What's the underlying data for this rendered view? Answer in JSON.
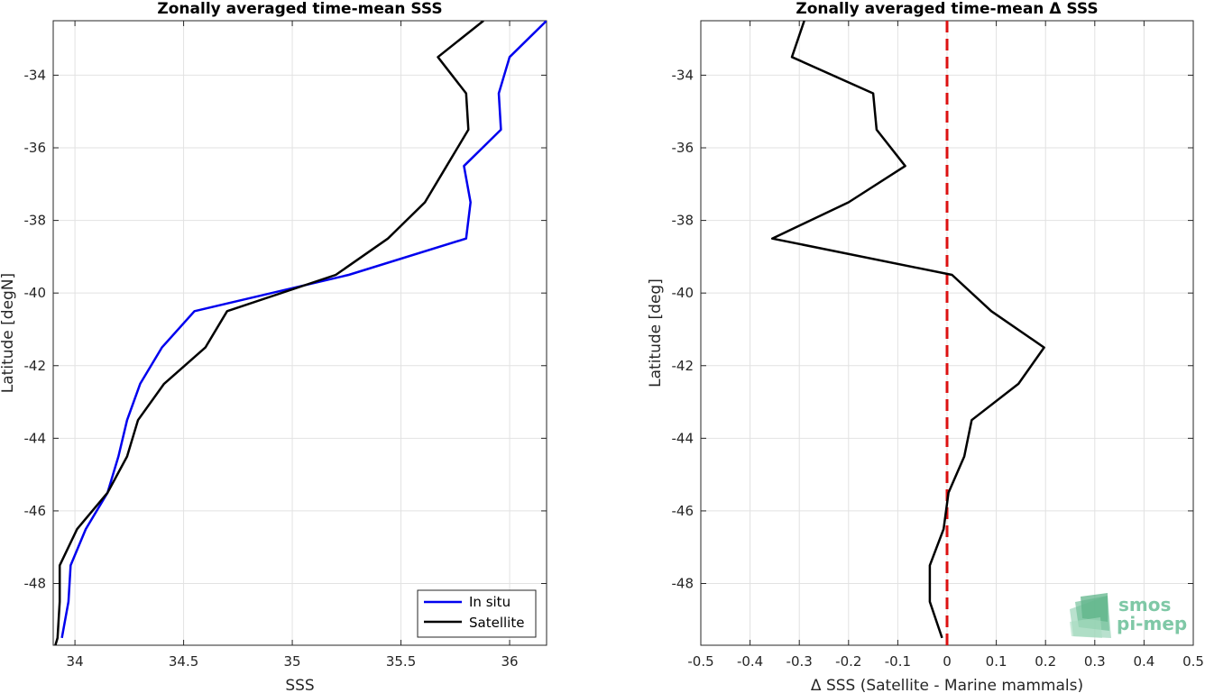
{
  "chart_data": [
    {
      "type": "line",
      "title": "Zonally averaged time-mean SSS",
      "xlabel": "SSS",
      "ylabel": "Latitude [degN]",
      "xlim": [
        33.9,
        36.17
      ],
      "ylim": [
        -49.7,
        -32.5
      ],
      "xticks": [
        34,
        34.5,
        35,
        35.5,
        36
      ],
      "xtick_labels": [
        "34",
        "34.5",
        "35",
        "35.5",
        "36"
      ],
      "yticks": [
        -48,
        -46,
        -44,
        -42,
        -40,
        -38,
        -36,
        -34
      ],
      "ytick_labels": [
        "-48",
        "-46",
        "-44",
        "-42",
        "-40",
        "-38",
        "-36",
        "-34"
      ],
      "grid": true,
      "legend_position": "bottom-right",
      "series": [
        {
          "name": "In situ",
          "color": "#0000ee",
          "points": [
            [
              36.17,
              -32.5
            ],
            [
              36.0,
              -33.5
            ],
            [
              35.95,
              -34.5
            ],
            [
              35.96,
              -35.5
            ],
            [
              35.79,
              -36.5
            ],
            [
              35.82,
              -37.5
            ],
            [
              35.8,
              -38.5
            ],
            [
              35.26,
              -39.5
            ],
            [
              34.55,
              -40.5
            ],
            [
              34.4,
              -41.5
            ],
            [
              34.3,
              -42.5
            ],
            [
              34.24,
              -43.5
            ],
            [
              34.2,
              -44.5
            ],
            [
              34.15,
              -45.5
            ],
            [
              34.05,
              -46.5
            ],
            [
              33.98,
              -47.5
            ],
            [
              33.97,
              -48.5
            ],
            [
              33.94,
              -49.5
            ]
          ]
        },
        {
          "name": "Satellite",
          "color": "#000000",
          "points": [
            [
              35.88,
              -32.5
            ],
            [
              35.67,
              -33.5
            ],
            [
              35.8,
              -34.5
            ],
            [
              35.81,
              -35.5
            ],
            [
              35.71,
              -36.5
            ],
            [
              35.61,
              -37.5
            ],
            [
              35.44,
              -38.5
            ],
            [
              35.2,
              -39.5
            ],
            [
              34.7,
              -40.5
            ],
            [
              34.6,
              -41.5
            ],
            [
              34.41,
              -42.5
            ],
            [
              34.29,
              -43.5
            ],
            [
              34.24,
              -44.5
            ],
            [
              34.15,
              -45.5
            ],
            [
              34.01,
              -46.5
            ],
            [
              33.93,
              -47.5
            ],
            [
              33.93,
              -48.5
            ],
            [
              33.92,
              -49.5
            ],
            [
              33.91,
              -49.7
            ]
          ]
        }
      ]
    },
    {
      "type": "line",
      "title": "Zonally averaged time-mean Δ SSS",
      "xlabel": "Δ SSS (Satellite - Marine mammals)",
      "ylabel": "Latitude [deg]",
      "xlim": [
        -0.5,
        0.5
      ],
      "ylim": [
        -49.7,
        -32.5
      ],
      "xticks": [
        -0.5,
        -0.4,
        -0.3,
        -0.2,
        -0.1,
        0,
        0.1,
        0.2,
        0.3,
        0.4,
        0.5
      ],
      "xtick_labels": [
        "-0.5",
        "-0.4",
        "-0.3",
        "-0.2",
        "-0.1",
        "0",
        "0.1",
        "0.2",
        "0.3",
        "0.4",
        "0.5"
      ],
      "yticks": [
        -48,
        -46,
        -44,
        -42,
        -40,
        -38,
        -36,
        -34
      ],
      "ytick_labels": [
        "-48",
        "-46",
        "-44",
        "-42",
        "-40",
        "-38",
        "-36",
        "-34"
      ],
      "grid": true,
      "reference_line": {
        "x": 0,
        "color": "#dd1111",
        "style": "dashed"
      },
      "series": [
        {
          "color": "#000000",
          "points": [
            [
              -0.29,
              -32.5
            ],
            [
              -0.315,
              -33.5
            ],
            [
              -0.15,
              -34.5
            ],
            [
              -0.143,
              -35.5
            ],
            [
              -0.085,
              -36.5
            ],
            [
              -0.2,
              -37.5
            ],
            [
              -0.355,
              -38.5
            ],
            [
              0.01,
              -39.5
            ],
            [
              0.09,
              -40.5
            ],
            [
              0.197,
              -41.5
            ],
            [
              0.145,
              -42.5
            ],
            [
              0.05,
              -43.5
            ],
            [
              0.035,
              -44.5
            ],
            [
              0.003,
              -45.5
            ],
            [
              -0.007,
              -46.5
            ],
            [
              -0.035,
              -47.5
            ],
            [
              -0.035,
              -48.5
            ],
            [
              -0.01,
              -49.5
            ]
          ]
        }
      ]
    }
  ],
  "logo": {
    "line1": "smos",
    "line2": "pi-mep",
    "color": "#7fc8a6"
  }
}
